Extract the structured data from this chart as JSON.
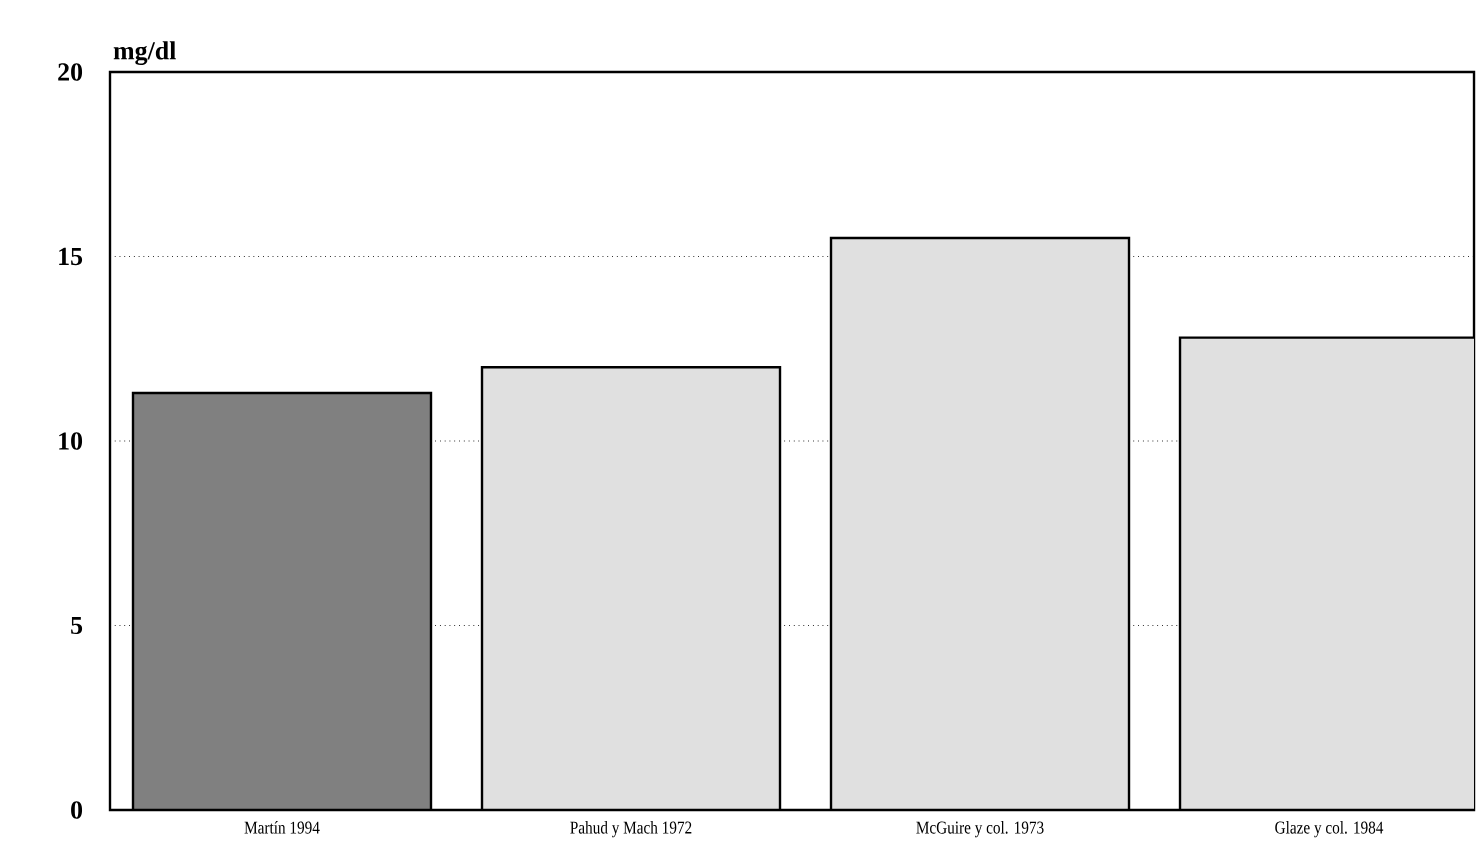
{
  "chart_data": {
    "type": "bar",
    "ylabel": "mg/dl",
    "categories": [
      "Martín 1994",
      "Pahud y Mach 1972",
      "McGuire y col. 1973",
      "Glaze y col. 1984"
    ],
    "values": [
      11.3,
      12,
      15.5,
      12.8
    ],
    "colors": [
      "#808080",
      "#e0e0e0",
      "#e0e0e0",
      "#e0e0e0"
    ],
    "ylim": [
      0,
      20
    ],
    "yticks": [
      0,
      5,
      10,
      15,
      20
    ],
    "grid": "y"
  }
}
